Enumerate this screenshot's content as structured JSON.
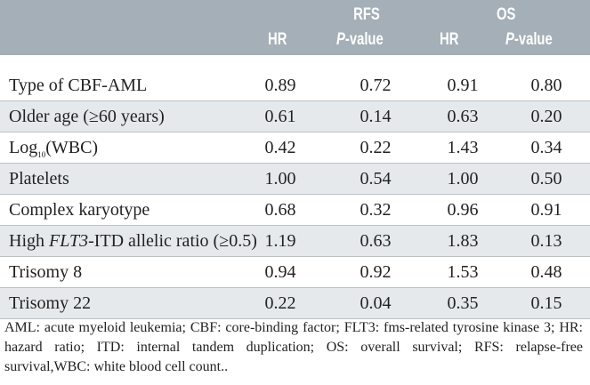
{
  "header": {
    "group1": "RFS",
    "group2": "OS",
    "cols": [
      "HR",
      "P",
      "-value",
      "HR",
      "P",
      "-value"
    ]
  },
  "rows": [
    {
      "label": "Type of CBF-AML",
      "rfs_hr": "0.89",
      "rfs_p": "0.72",
      "os_hr": "0.91",
      "os_p": "0.80"
    },
    {
      "label": "Older age (≥60  years)",
      "rfs_hr": "0.61",
      "rfs_p": "0.14",
      "os_hr": "0.63",
      "os_p": "0.20"
    },
    {
      "label": "Log",
      "label_sub": "10",
      "label_rest": "(WBC)",
      "rfs_hr": "0.42",
      "rfs_p": "0.22",
      "os_hr": "1.43",
      "os_p": "0.34"
    },
    {
      "label": "Platelets",
      "rfs_hr": "1.00",
      "rfs_p": "0.54",
      "os_hr": "1.00",
      "os_p": "0.50"
    },
    {
      "label": "Complex karyotype",
      "rfs_hr": "0.68",
      "rfs_p": "0.32",
      "os_hr": "0.96",
      "os_p": "0.91"
    },
    {
      "label": "High ",
      "label_italic": "FLT3",
      "label_rest": "-ITD allelic ratio (≥0.5)",
      "rfs_hr": "1.19",
      "rfs_p": "0.63",
      "os_hr": "1.83",
      "os_p": "0.13"
    },
    {
      "label": "Trisomy 8",
      "rfs_hr": "0.94",
      "rfs_p": "0.92",
      "os_hr": "1.53",
      "os_p": "0.48"
    },
    {
      "label": "Trisomy 22",
      "rfs_hr": "0.22",
      "rfs_p": "0.04",
      "os_hr": "0.35",
      "os_p": "0.15"
    }
  ],
  "footnote": "AML: acute myeloid leukemia; CBF: core-binding factor; FLT3: fms-related tyrosine kinase 3; HR: hazard ratio; ITD: internal tandem duplication; OS: overall survival; RFS: relapse-free survival,WBC: white blood cell count.."
}
